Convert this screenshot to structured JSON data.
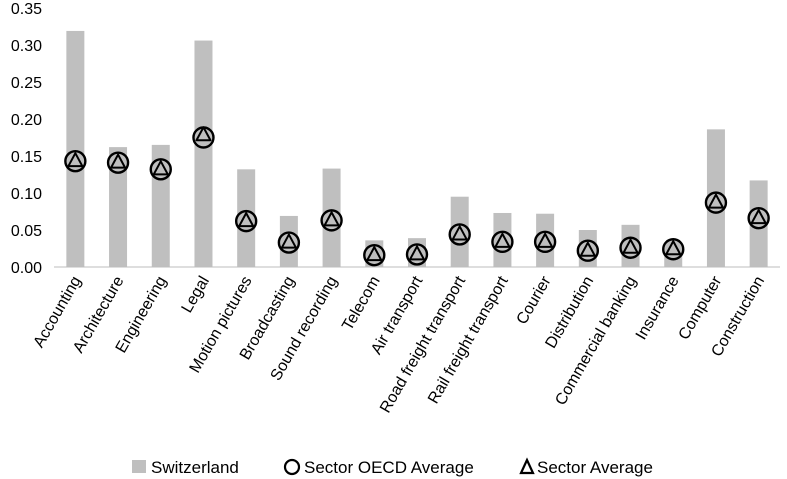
{
  "chart_data": {
    "type": "bar",
    "title": "",
    "xlabel": "",
    "ylabel": "",
    "ylim": [
      0,
      0.35
    ],
    "yticks": [
      "0.00",
      "0.05",
      "0.10",
      "0.15",
      "0.20",
      "0.25",
      "0.30",
      "0.35"
    ],
    "categories": [
      "Accounting",
      "Architecture",
      "Engineering",
      "Legal",
      "Motion pictures",
      "Broadcasting",
      "Sound recording",
      "Telecom",
      "Air transport",
      "Road freight transport",
      "Rail freight transport",
      "Courier",
      "Distribution",
      "Commercial banking",
      "Insurance",
      "Computer",
      "Construction"
    ],
    "series": [
      {
        "name": "Switzerland",
        "kind": "bar",
        "color": "#bfbfbf",
        "values": [
          0.319,
          0.162,
          0.165,
          0.306,
          0.132,
          0.069,
          0.133,
          0.036,
          0.039,
          0.095,
          0.073,
          0.072,
          0.05,
          0.057,
          0.025,
          0.186,
          0.117
        ]
      },
      {
        "name": "Sector OECD Average",
        "kind": "circle",
        "values": [
          0.143,
          0.141,
          0.132,
          0.175,
          0.062,
          0.033,
          0.063,
          0.016,
          0.017,
          0.044,
          0.034,
          0.034,
          0.022,
          0.026,
          0.024,
          0.087,
          0.066
        ]
      },
      {
        "name": "Sector Average",
        "kind": "triangle",
        "values": [
          0.143,
          0.141,
          0.132,
          0.178,
          0.062,
          0.033,
          0.063,
          0.016,
          0.017,
          0.044,
          0.034,
          0.034,
          0.022,
          0.026,
          0.024,
          0.087,
          0.066
        ]
      }
    ],
    "legend_position": "bottom",
    "grid": false
  }
}
